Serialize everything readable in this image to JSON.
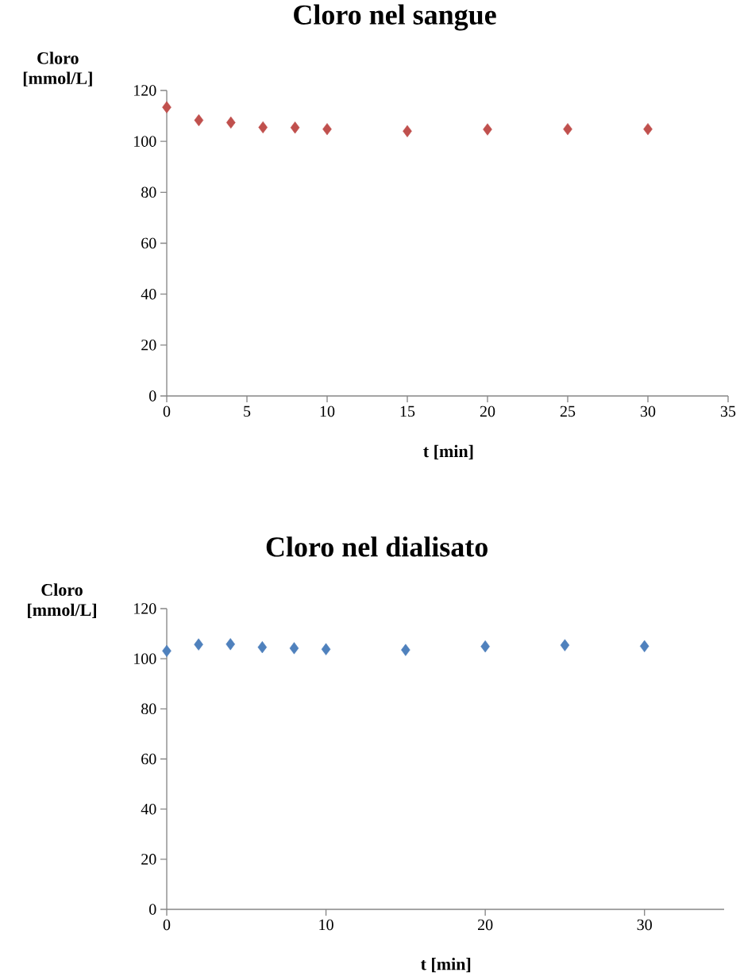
{
  "chart_data": [
    {
      "type": "scatter",
      "title": "Cloro nel sangue",
      "xlabel": "t [min]",
      "ylabel": "Cloro [mmol/L]",
      "x": [
        0,
        2,
        4,
        6,
        8,
        10,
        15,
        20,
        25,
        30
      ],
      "values": [
        113.4,
        108.3,
        107.4,
        105.5,
        105.4,
        104.8,
        104.0,
        104.7,
        104.8,
        104.8
      ],
      "color": "#c0504d",
      "marker": "diamond",
      "grid": false,
      "xlim": [
        0,
        35
      ],
      "ylim": [
        0,
        120
      ],
      "xticks": [
        0,
        5,
        10,
        15,
        20,
        25,
        30,
        35
      ],
      "yticks": [
        0,
        20,
        40,
        60,
        80,
        100,
        120
      ]
    },
    {
      "type": "scatter",
      "title": "Cloro nel dialisato",
      "xlabel": "t [min]",
      "ylabel": "Cloro [mmol/L]",
      "x": [
        0,
        2,
        4,
        6,
        8,
        10,
        15,
        20,
        25,
        30
      ],
      "values": [
        103.1,
        105.7,
        105.8,
        104.6,
        104.2,
        103.8,
        103.5,
        104.9,
        105.4,
        105.0
      ],
      "color": "#4f81bd",
      "marker": "diamond",
      "grid": false,
      "xlim": [
        0,
        35
      ],
      "ylim": [
        0,
        120
      ],
      "xticks": [
        0,
        10,
        20,
        30
      ],
      "yticks": [
        0,
        20,
        40,
        60,
        80,
        100,
        120
      ]
    }
  ]
}
